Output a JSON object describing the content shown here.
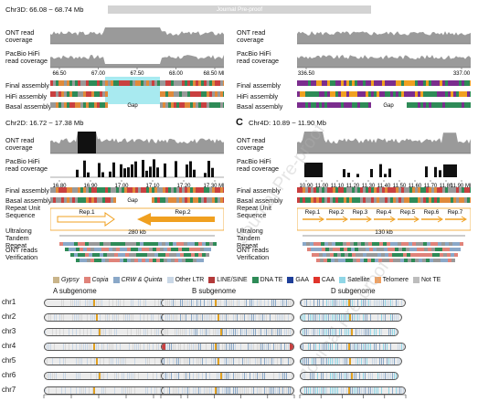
{
  "banner": "Journal Pre-proof",
  "panelA": {
    "title": "Chr3D: 66.08 ~ 68.74 Mb",
    "left_labels": [
      "ONT read coverage",
      "PacBio HiFi read coverage"
    ],
    "ticks_left": [
      "66.50",
      "67.00",
      "67.50",
      "68.00",
      "68.50 Mb"
    ],
    "asm_labels": [
      "Final assembly",
      "HiFi assembly",
      "Basal assembly"
    ],
    "gap": "Gap"
  },
  "panelA2": {
    "left_labels": [
      "ONT read coverage",
      "PacBio HiFi read coverage"
    ],
    "ticks": [
      "336.50",
      "337.00"
    ],
    "asm_labels": [
      "Final assembly",
      "HiFi assembly",
      "Basal assembly"
    ],
    "gap": "Gap"
  },
  "panelB": {
    "title": "Chr2D: 16.72 ~ 17.38 Mb",
    "labels": [
      "ONT read coverage",
      "PacBio HiFi read coverage"
    ],
    "ticks": [
      "16.80",
      "16.90",
      "17.00",
      "17.10",
      "17.20",
      "17.30 Mb"
    ],
    "asm_labels": [
      "Final assembly",
      "Basal assembly"
    ],
    "extra_labels": [
      "Repeat Unit Sequence",
      "Ultralong Tandem Repeat",
      "ONT reads Verification"
    ],
    "gap": "Gap",
    "rep1": "Rep.1",
    "rep2": "Rep.2",
    "size": "280 kb"
  },
  "panelC": {
    "letter": "C",
    "title": "Chr4D: 10.89 ~ 11.90 Mb",
    "labels": [
      "ONT read coverage",
      "PacBio HiFi read coverage"
    ],
    "ticks": [
      "10.90",
      "11.00",
      "11.10",
      "11.20",
      "11.30",
      "11.40",
      "11.50",
      "11.60",
      "11.70",
      "11.80",
      "11.90 Mb"
    ],
    "asm_labels": [
      "Final assembly",
      "Basal assembly"
    ],
    "extra_labels": [
      "Repeat Unit Sequence",
      "Ultralong Tandem Repeat",
      "ONT reads Verification"
    ],
    "reps": [
      "Rep.1",
      "Rep.2",
      "Rep.3",
      "Rep.4",
      "Rep.5",
      "Rep.6",
      "Rep.7"
    ],
    "size": "130 kb"
  },
  "legend": [
    {
      "label": "Gypsy",
      "color": "#c9b48a",
      "italic": true
    },
    {
      "label": "Copia",
      "color": "#e0837a",
      "italic": true
    },
    {
      "label": "CRW & Quinta",
      "color": "#8aa8c8",
      "italic": true
    },
    {
      "label": "Other LTR",
      "color": "#c9d7e6",
      "italic": false
    },
    {
      "label": "LINE/SINE",
      "color": "#b33a3a",
      "italic": false
    },
    {
      "label": "DNA TE",
      "color": "#2e8b57",
      "italic": false
    },
    {
      "label": "GAA",
      "color": "#1f3f99",
      "italic": false
    },
    {
      "label": "CAA",
      "color": "#e0342b",
      "italic": false
    },
    {
      "label": "Satellite",
      "color": "#8fd6e6",
      "italic": false
    },
    {
      "label": "Telomere",
      "color": "#f0a060",
      "italic": false
    },
    {
      "label": "Not TE",
      "color": "#bdbdbd",
      "italic": false
    }
  ],
  "subgenomes": [
    "A subgenome",
    "B subgenome",
    "D subgenome"
  ],
  "chromosomes": [
    "chr1",
    "chr2",
    "chr3",
    "chr4",
    "chr5",
    "chr6",
    "chr7"
  ],
  "colors": {
    "coverage": "#9a9a9a",
    "dark": "#111111",
    "purple": "#7b2d8e",
    "orange": "#f0a020",
    "cyan": "#a8eaf0"
  }
}
